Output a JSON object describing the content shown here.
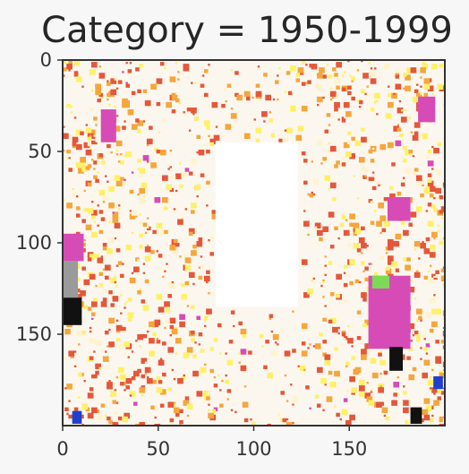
{
  "chart_data": {
    "type": "heatmap",
    "title": "Category = 1950-1999",
    "xlabel": "",
    "ylabel": "",
    "xlim": [
      0,
      200
    ],
    "ylim": [
      200,
      0
    ],
    "x_ticks": [
      0,
      50,
      100,
      150
    ],
    "y_ticks": [
      0,
      50,
      100,
      150
    ],
    "grid": false,
    "image_size": [
      200,
      200
    ],
    "background_color": "#fbf7ef",
    "palette": {
      "cream": "#fff3cf",
      "yellow": "#fff06a",
      "orange": "#f5a63c",
      "red_orange": "#e4573a",
      "magenta": "#d64bb6",
      "green": "#7ed957",
      "blue": "#1f3fd1",
      "black": "#111111",
      "gray": "#9a9a9a",
      "white": "#ffffff"
    },
    "regions": [
      {
        "label": "white-block",
        "x": [
          80,
          123
        ],
        "y": [
          45,
          135
        ],
        "color": "#ffffff"
      },
      {
        "label": "magenta-left",
        "x": [
          0,
          11
        ],
        "y": [
          95,
          110
        ],
        "color": "#d64bb6"
      },
      {
        "label": "gray-left",
        "x": [
          0,
          8
        ],
        "y": [
          110,
          130
        ],
        "color": "#9a9a9a"
      },
      {
        "label": "black-left",
        "x": [
          0,
          10
        ],
        "y": [
          130,
          145
        ],
        "color": "#111111"
      },
      {
        "label": "magenta-right-lower",
        "x": [
          160,
          182
        ],
        "y": [
          118,
          158
        ],
        "color": "#d64bb6"
      },
      {
        "label": "magenta-right-upper",
        "x": [
          170,
          182
        ],
        "y": [
          75,
          88
        ],
        "color": "#d64bb6"
      },
      {
        "label": "black-right",
        "x": [
          171,
          178
        ],
        "y": [
          157,
          170
        ],
        "color": "#111111"
      },
      {
        "label": "green-right",
        "x": [
          162,
          171
        ],
        "y": [
          118,
          125
        ],
        "color": "#7ed957"
      },
      {
        "label": "blue-bottom-left",
        "x": [
          5,
          10
        ],
        "y": [
          192,
          199
        ],
        "color": "#1f3fd1"
      },
      {
        "label": "blue-right",
        "x": [
          194,
          199
        ],
        "y": [
          173,
          180
        ],
        "color": "#1f3fd1"
      },
      {
        "label": "magenta-top-right",
        "x": [
          186,
          195
        ],
        "y": [
          20,
          34
        ],
        "color": "#d64bb6"
      },
      {
        "label": "magenta-top-left",
        "x": [
          20,
          28
        ],
        "y": [
          27,
          45
        ],
        "color": "#d64bb6"
      },
      {
        "label": "black-bottom-right",
        "x": [
          182,
          188
        ],
        "y": [
          190,
          199
        ],
        "color": "#111111"
      }
    ]
  }
}
